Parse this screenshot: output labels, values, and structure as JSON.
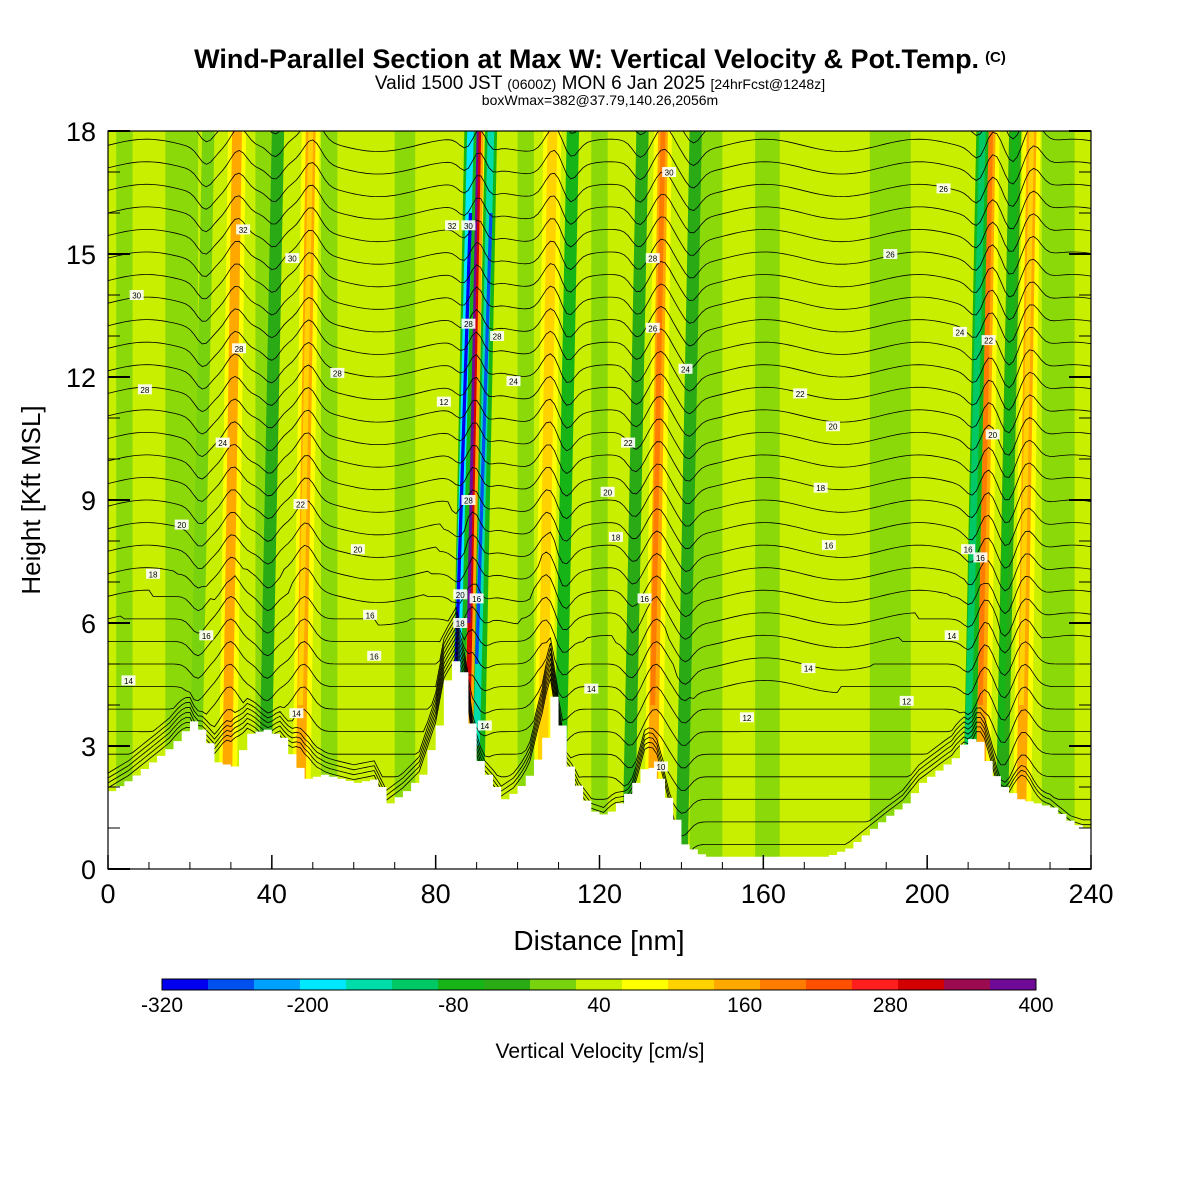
{
  "header": {
    "title": "Wind-Parallel Section at Max W: Vertical Velocity & Pot.Temp.",
    "copyright": "(C)",
    "valid_prefix": "Valid 1500 JST",
    "valid_utc": "(0600Z)",
    "valid_date": "MON 6 Jan 2025",
    "forecast": "[24hrFcst@1248z]",
    "box_info": "boxWmax=382@37.79,140.26,2056m"
  },
  "chart_data": {
    "type": "heatmap",
    "xlabel": "Distance [nm]",
    "ylabel": "Height [Kft MSL]",
    "xlim": [
      0,
      240
    ],
    "ylim": [
      0,
      18
    ],
    "x_ticks": [
      0,
      40,
      80,
      120,
      160,
      200,
      240
    ],
    "y_ticks": [
      0,
      3,
      6,
      9,
      12,
      15,
      18
    ],
    "colorbar": {
      "label": "Vertical Velocity [cm/s]",
      "min": -320,
      "max": 400,
      "tick_labels": [
        "-320",
        "-200",
        "-80",
        "40",
        "160",
        "280",
        "400"
      ],
      "colors": [
        "#0000ee",
        "#0050f0",
        "#00a0ff",
        "#00e8ff",
        "#00dcaa",
        "#00c864",
        "#16b416",
        "#2aaa14",
        "#78d20e",
        "#c8ee00",
        "#ffff00",
        "#ffd200",
        "#ffa800",
        "#ff7c00",
        "#ff5000",
        "#ff1e1e",
        "#d20000",
        "#9c0a50",
        "#6e0a96"
      ]
    },
    "terrain_kft": [
      [
        0,
        1.9
      ],
      [
        5,
        2.2
      ],
      [
        10,
        2.6
      ],
      [
        15,
        3.0
      ],
      [
        20,
        3.6
      ],
      [
        23,
        3.3
      ],
      [
        26,
        2.6
      ],
      [
        30,
        2.5
      ],
      [
        34,
        3.3
      ],
      [
        38,
        3.4
      ],
      [
        42,
        3.2
      ],
      [
        45,
        2.6
      ],
      [
        48,
        2.2
      ],
      [
        52,
        2.3
      ],
      [
        56,
        2.2
      ],
      [
        60,
        2.1
      ],
      [
        65,
        2.2
      ],
      [
        68,
        1.6
      ],
      [
        72,
        1.9
      ],
      [
        76,
        2.3
      ],
      [
        80,
        3.5
      ],
      [
        82,
        4.6
      ],
      [
        85,
        5.3
      ],
      [
        87,
        4.3
      ],
      [
        89,
        2.8
      ],
      [
        92,
        2.3
      ],
      [
        96,
        1.7
      ],
      [
        99,
        1.9
      ],
      [
        103,
        2.4
      ],
      [
        106,
        3.2
      ],
      [
        108,
        4.2
      ],
      [
        110,
        3.5
      ],
      [
        112,
        2.5
      ],
      [
        115,
        1.8
      ],
      [
        118,
        1.4
      ],
      [
        121,
        1.3
      ],
      [
        125,
        1.7
      ],
      [
        128,
        2.1
      ],
      [
        131,
        2.6
      ],
      [
        134,
        2.2
      ],
      [
        137,
        1.5
      ],
      [
        140,
        0.6
      ],
      [
        145,
        0.3
      ],
      [
        150,
        0.3
      ],
      [
        155,
        0.3
      ],
      [
        160,
        0.3
      ],
      [
        165,
        0.3
      ],
      [
        170,
        0.3
      ],
      [
        175,
        0.3
      ],
      [
        180,
        0.5
      ],
      [
        185,
        0.9
      ],
      [
        190,
        1.3
      ],
      [
        194,
        1.6
      ],
      [
        198,
        2.1
      ],
      [
        202,
        2.4
      ],
      [
        206,
        2.7
      ],
      [
        209,
        3.2
      ],
      [
        212,
        3.1
      ],
      [
        215,
        2.4
      ],
      [
        218,
        2.0
      ],
      [
        222,
        1.7
      ],
      [
        226,
        1.6
      ],
      [
        230,
        1.5
      ],
      [
        235,
        1.1
      ],
      [
        238,
        1.0
      ],
      [
        240,
        1.0
      ]
    ],
    "updrafts": [
      {
        "x": 29,
        "peak_cm_s": 180
      },
      {
        "x": 47,
        "peak_cm_s": 160
      },
      {
        "x": 88,
        "peak_cm_s": 382
      },
      {
        "x": 106,
        "peak_cm_s": 130
      },
      {
        "x": 133,
        "peak_cm_s": 220
      },
      {
        "x": 213,
        "peak_cm_s": 250
      },
      {
        "x": 223,
        "peak_cm_s": 160
      }
    ],
    "downdrafts": [
      {
        "x": 21,
        "min_cm_s": -40
      },
      {
        "x": 38,
        "min_cm_s": -60
      },
      {
        "x": 85,
        "min_cm_s": -300
      },
      {
        "x": 90,
        "min_cm_s": -250
      },
      {
        "x": 110,
        "min_cm_s": -140
      },
      {
        "x": 127,
        "min_cm_s": -80
      },
      {
        "x": 140,
        "min_cm_s": -60
      },
      {
        "x": 210,
        "min_cm_s": -200
      },
      {
        "x": 218,
        "min_cm_s": -120
      }
    ],
    "contour_labels": [
      {
        "text": "32",
        "x": 33,
        "y": 15.6
      },
      {
        "text": "30",
        "x": 45,
        "y": 14.9
      },
      {
        "text": "30",
        "x": 7,
        "y": 14.0
      },
      {
        "text": "28",
        "x": 32,
        "y": 12.7
      },
      {
        "text": "28",
        "x": 56,
        "y": 12.1
      },
      {
        "text": "28",
        "x": 9,
        "y": 11.7
      },
      {
        "text": "24",
        "x": 28,
        "y": 10.4
      },
      {
        "text": "22",
        "x": 47,
        "y": 8.9
      },
      {
        "text": "20",
        "x": 18,
        "y": 8.4
      },
      {
        "text": "20",
        "x": 61,
        "y": 7.8
      },
      {
        "text": "18",
        "x": 11,
        "y": 7.2
      },
      {
        "text": "16",
        "x": 64,
        "y": 6.2
      },
      {
        "text": "16",
        "x": 24,
        "y": 5.7
      },
      {
        "text": "16",
        "x": 65,
        "y": 5.2
      },
      {
        "text": "14",
        "x": 5,
        "y": 4.6
      },
      {
        "text": "14",
        "x": 46,
        "y": 3.8
      },
      {
        "text": "32",
        "x": 84,
        "y": 15.7
      },
      {
        "text": "30",
        "x": 88,
        "y": 15.7
      },
      {
        "text": "28",
        "x": 88,
        "y": 13.3
      },
      {
        "text": "28",
        "x": 95,
        "y": 13.0
      },
      {
        "text": "12",
        "x": 82,
        "y": 11.4
      },
      {
        "text": "24",
        "x": 99,
        "y": 11.9
      },
      {
        "text": "28",
        "x": 88,
        "y": 9.0
      },
      {
        "text": "20",
        "x": 86,
        "y": 6.7
      },
      {
        "text": "16",
        "x": 90,
        "y": 6.6
      },
      {
        "text": "18",
        "x": 86,
        "y": 6.0
      },
      {
        "text": "14",
        "x": 92,
        "y": 3.5
      },
      {
        "text": "30",
        "x": 137,
        "y": 17.0
      },
      {
        "text": "28",
        "x": 133,
        "y": 14.9
      },
      {
        "text": "26",
        "x": 133,
        "y": 13.2
      },
      {
        "text": "24",
        "x": 141,
        "y": 12.2
      },
      {
        "text": "22",
        "x": 127,
        "y": 10.4
      },
      {
        "text": "20",
        "x": 122,
        "y": 9.2
      },
      {
        "text": "18",
        "x": 124,
        "y": 8.1
      },
      {
        "text": "16",
        "x": 131,
        "y": 6.6
      },
      {
        "text": "14",
        "x": 118,
        "y": 4.4
      },
      {
        "text": "10",
        "x": 135,
        "y": 2.5
      },
      {
        "text": "26",
        "x": 204,
        "y": 16.6
      },
      {
        "text": "26",
        "x": 191,
        "y": 15.0
      },
      {
        "text": "24",
        "x": 208,
        "y": 13.1
      },
      {
        "text": "22",
        "x": 215,
        "y": 12.9
      },
      {
        "text": "22",
        "x": 169,
        "y": 11.6
      },
      {
        "text": "20",
        "x": 177,
        "y": 10.8
      },
      {
        "text": "20",
        "x": 216,
        "y": 10.6
      },
      {
        "text": "18",
        "x": 174,
        "y": 9.3
      },
      {
        "text": "16",
        "x": 176,
        "y": 7.9
      },
      {
        "text": "16",
        "x": 210,
        "y": 7.8
      },
      {
        "text": "16",
        "x": 213,
        "y": 7.6
      },
      {
        "text": "14",
        "x": 206,
        "y": 5.7
      },
      {
        "text": "14",
        "x": 171,
        "y": 4.9
      },
      {
        "text": "12",
        "x": 195,
        "y": 4.1
      },
      {
        "text": "12",
        "x": 156,
        "y": 3.7
      }
    ]
  }
}
